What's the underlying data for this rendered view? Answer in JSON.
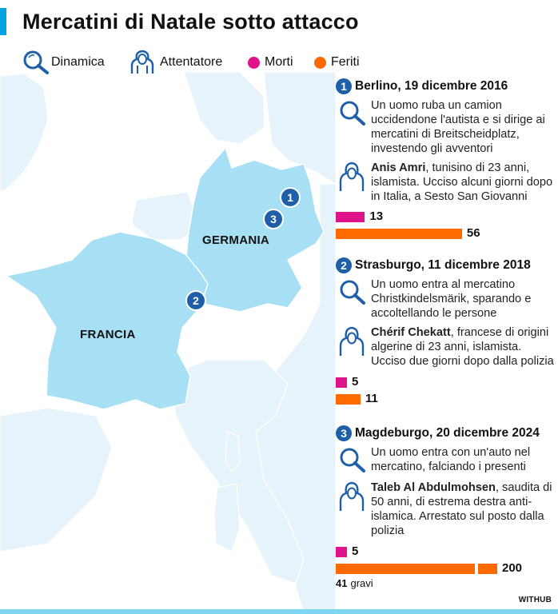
{
  "title": "Mercatini di Natale sotto attacco",
  "legend": {
    "dinamica": "Dinamica",
    "attentatore": "Attentatore",
    "morti": "Morti",
    "feriti": "Feriti"
  },
  "colors": {
    "morti": "#e0148a",
    "feriti": "#ff6a00",
    "badge": "#1f5fa8",
    "highlight_country": "#a7dff5",
    "land": "#e6f3fa",
    "sea": "#ffffff"
  },
  "map": {
    "countries": {
      "germania": "GERMANIA",
      "francia": "FRANCIA"
    },
    "markers": [
      "1",
      "3",
      "2"
    ]
  },
  "events": [
    {
      "number": "1",
      "heading": "Berlino, 19 dicembre 2016",
      "dynamics": "Un uomo ruba un camion uccidendone l'autista e si dirige ai mercatini di Breitscheidplatz, investendo gli avventori",
      "attacker_name": "Anis Amri",
      "attacker_desc": ", tunisino di 23 anni, islamista. Ucciso alcuni giorni dopo in Italia, a Sesto San Giovanni",
      "morti": 13,
      "feriti": 56,
      "feriti_label": "56"
    },
    {
      "number": "2",
      "heading": "Strasburgo, 11 dicembre 2018",
      "dynamics": "Un uomo entra al mercatino Christkindelsmärik, sparando e accoltellando le persone",
      "attacker_name": "Chérif Chekatt",
      "attacker_desc": ", francese di origini algerine di 23 anni, islamista. Ucciso due giorni dopo dalla polizia",
      "morti": 5,
      "feriti": 11,
      "feriti_label": "11"
    },
    {
      "number": "3",
      "heading": "Magdeburgo, 20 dicembre 2024",
      "dynamics": "Un uomo entra con un'auto nel mercatino, falciando i presenti",
      "attacker_name": "Taleb Al Abdulmohsen",
      "attacker_desc": ", saudita di 50 anni, di estrema destra anti-islamica. Arrestato sul posto dalla polizia",
      "morti": 5,
      "feriti": 200,
      "feriti_label": "200",
      "gravi": 41,
      "gravi_label": "gravi"
    }
  ],
  "credit": "WITHUB"
}
